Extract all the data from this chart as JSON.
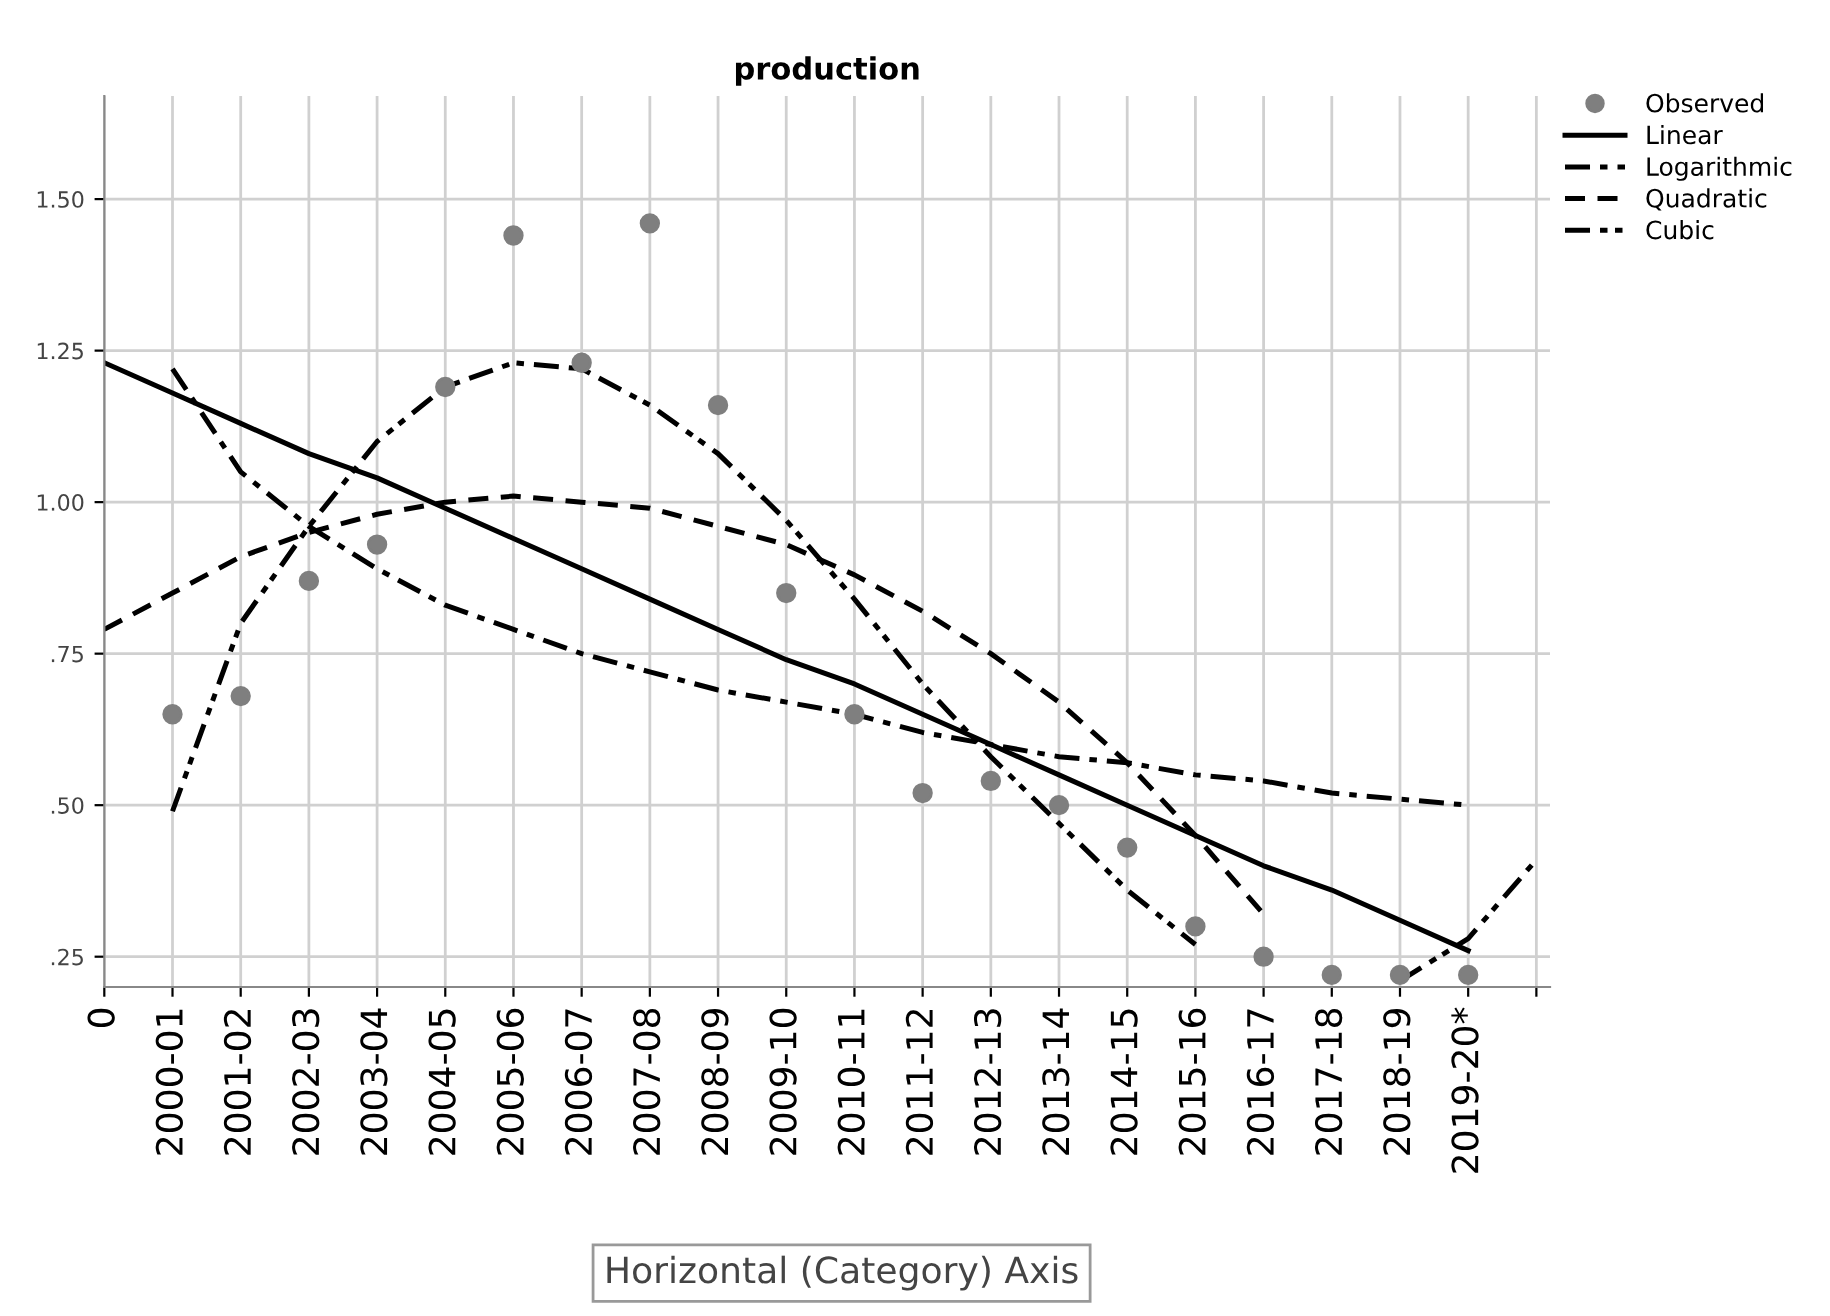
{
  "chart_data": {
    "type": "line",
    "title": "production",
    "categories": [
      "0",
      "2000-01",
      "2001-02",
      "2002-03",
      "2003-04",
      "2004-05",
      "2005-06",
      "2006-07",
      "2007-08",
      "2008-09",
      "2009-10",
      "2010-11",
      "2011-12",
      "2012-13",
      "2013-14",
      "2014-15",
      "2015-16",
      "2016-17",
      "2017-18",
      "2018-19",
      "2019-20*",
      null
    ],
    "ylim": [
      0.2,
      1.67
    ],
    "yticks": [
      {
        "value": 0.25,
        "label": ".25"
      },
      {
        "value": 0.5,
        "label": ".50"
      },
      {
        "value": 0.75,
        "label": ".75"
      },
      {
        "value": 1.0,
        "label": "1.00"
      },
      {
        "value": 1.25,
        "label": "1.25"
      },
      {
        "value": 1.5,
        "label": "1.50"
      }
    ],
    "grid": true,
    "legend": "top right",
    "annotations": [
      "Horizontal (Category) Axis"
    ],
    "series": [
      {
        "name": "Observed",
        "type": "scatter",
        "marker": "circle",
        "color": "#7f7f7f",
        "values": [
          null,
          0.65,
          0.68,
          0.87,
          0.93,
          1.19,
          1.44,
          1.23,
          1.46,
          1.16,
          0.85,
          0.65,
          0.52,
          0.54,
          0.5,
          0.43,
          0.3,
          0.25,
          0.22,
          0.22,
          0.22,
          null
        ]
      },
      {
        "name": "Linear",
        "line_style": "solid",
        "color": "#000000",
        "values": [
          1.23,
          1.18,
          1.13,
          1.08,
          1.04,
          0.99,
          0.94,
          0.89,
          0.84,
          0.79,
          0.74,
          0.7,
          0.65,
          0.6,
          0.55,
          0.5,
          0.45,
          0.4,
          0.36,
          0.31,
          0.26,
          null
        ]
      },
      {
        "name": "Logarithmic",
        "line_style": "dashdot",
        "color": "#000000",
        "values": [
          null,
          1.22,
          1.05,
          0.96,
          0.89,
          0.83,
          0.79,
          0.75,
          0.72,
          0.69,
          0.67,
          0.65,
          0.62,
          0.6,
          0.58,
          0.57,
          0.55,
          0.54,
          0.52,
          0.51,
          0.5,
          null
        ]
      },
      {
        "name": "Quadratic",
        "line_style": "dashed",
        "color": "#000000",
        "values": [
          0.79,
          0.85,
          0.91,
          0.95,
          0.98,
          1.0,
          1.01,
          1.0,
          0.99,
          0.96,
          0.93,
          0.88,
          0.82,
          0.75,
          0.67,
          0.57,
          0.45,
          0.32,
          null,
          null,
          null,
          null
        ]
      },
      {
        "name": "Cubic",
        "line_style": "dashdotdot",
        "color": "#000000",
        "values": [
          null,
          0.49,
          0.8,
          0.96,
          1.1,
          1.19,
          1.23,
          1.22,
          1.16,
          1.08,
          0.97,
          0.84,
          0.7,
          0.58,
          0.47,
          0.36,
          0.27,
          null,
          null,
          0.21,
          0.28,
          0.41
        ]
      }
    ]
  }
}
